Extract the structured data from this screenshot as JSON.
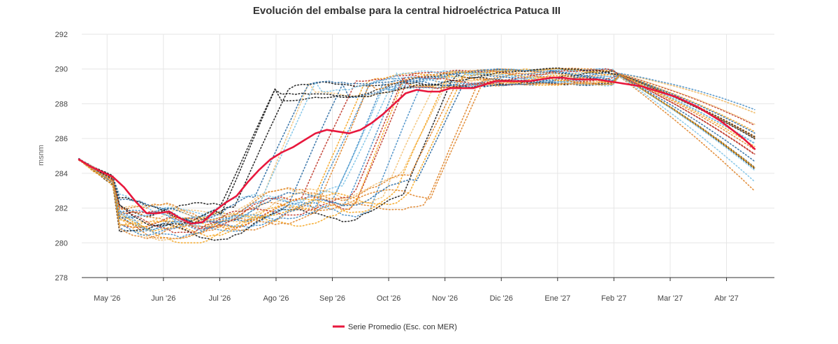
{
  "chart_data": {
    "type": "line",
    "title": "Evolución del embalse para la central hidroeléctrica Patuca III",
    "xlabel": "",
    "ylabel": "msnm",
    "ylim": [
      278,
      292
    ],
    "yticks": [
      278,
      280,
      282,
      284,
      286,
      288,
      290,
      292
    ],
    "x_range_months": [
      0.55,
      12.85
    ],
    "xticks": [
      {
        "pos": 1,
        "label": "May '26"
      },
      {
        "pos": 2,
        "label": "Jun '26"
      },
      {
        "pos": 3,
        "label": "Jul '26"
      },
      {
        "pos": 4,
        "label": "Ago '26"
      },
      {
        "pos": 5,
        "label": "Sep '26"
      },
      {
        "pos": 6,
        "label": "Oct '26"
      },
      {
        "pos": 7,
        "label": "Nov '26"
      },
      {
        "pos": 8,
        "label": "Dic '26"
      },
      {
        "pos": 9,
        "label": "Ene '27"
      },
      {
        "pos": 10,
        "label": "Feb '27"
      },
      {
        "pos": 11,
        "label": "Mar '27"
      },
      {
        "pos": 12,
        "label": "Abr '27"
      }
    ],
    "grid": true,
    "legend_position": "bottom",
    "series": [
      {
        "name": "Serie Promedio (Esc. con MER)",
        "color": "#e8173c",
        "style": "solid",
        "x": [
          0.5,
          0.7,
          0.9,
          1.1,
          1.3,
          1.5,
          1.7,
          1.9,
          2.1,
          2.3,
          2.5,
          2.7,
          2.9,
          3.1,
          3.3,
          3.5,
          3.7,
          3.9,
          4.1,
          4.3,
          4.5,
          4.7,
          4.9,
          5.1,
          5.3,
          5.5,
          5.7,
          5.9,
          6.1,
          6.3,
          6.5,
          6.7,
          6.9,
          7.1,
          7.3,
          7.5,
          7.7,
          7.9,
          8.1,
          8.3,
          8.5,
          8.7,
          8.9,
          9.1,
          9.3,
          9.5,
          9.7,
          9.9,
          10.1,
          10.3,
          10.5,
          10.7,
          10.9,
          11.1,
          11.3,
          11.5,
          11.7,
          11.9,
          12.1,
          12.3,
          12.5
        ],
        "y": [
          284.8,
          284.4,
          284.1,
          283.8,
          283.2,
          282.4,
          281.7,
          281.7,
          281.8,
          281.4,
          281.1,
          281.2,
          281.8,
          282.3,
          282.7,
          283.5,
          284.2,
          284.8,
          285.2,
          285.5,
          285.9,
          286.3,
          286.5,
          286.4,
          286.3,
          286.5,
          286.9,
          287.4,
          288.0,
          288.6,
          288.8,
          288.7,
          288.7,
          288.9,
          288.9,
          288.9,
          289.1,
          289.3,
          289.3,
          289.3,
          289.3,
          289.4,
          289.5,
          289.5,
          289.4,
          289.4,
          289.4,
          289.3,
          289.2,
          289.1,
          289.0,
          288.8,
          288.6,
          288.4,
          288.1,
          287.8,
          287.4,
          287.0,
          286.5,
          286.0,
          285.4
        ]
      }
    ],
    "scenario_palette": [
      "#1a1a1a",
      "#4a90c8",
      "#f5a623",
      "#e0852b",
      "#7fc4e8",
      "#f2c37a",
      "#2e6da4",
      "#c0392b"
    ]
  }
}
